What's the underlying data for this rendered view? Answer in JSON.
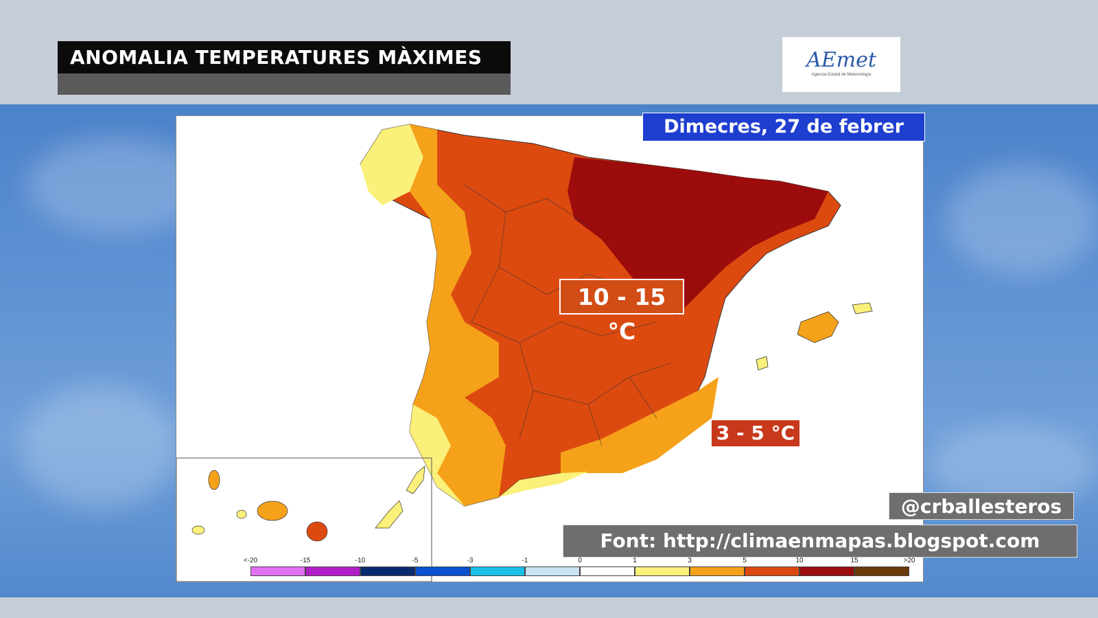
{
  "header": {
    "title": "ANOMALIA TEMPERATURES MÀXIMES",
    "logo_text": "AEmet",
    "logo_subtext": "Agencia Estatal de Meteorología"
  },
  "map": {
    "date_label": "Dimecres, 27 de febrer",
    "anomaly_label_center": "10 - 15 °C",
    "anomaly_label_coast": "3 - 5 °C",
    "colors": {
      "lt_minus15": "#e070f0",
      "minus15_minus10": "#b21ec8",
      "minus10_minus5": "#0a2a6e",
      "minus5_minus3": "#0a50d0",
      "minus3_minus1": "#18c0e8",
      "minus1_0": "#c8e4f4",
      "zero_1": "#ffffff",
      "one_3": "#fbf07a",
      "three_5": "#f5a21a",
      "five_10": "#dd4a10",
      "ten_15": "#9c0c0c",
      "gt15": "#6a3a0a"
    }
  },
  "legend": {
    "ticks": [
      "<-20",
      "-15",
      "-10",
      "-5",
      "-3",
      "-1",
      "0",
      "1",
      "3",
      "5",
      "10",
      "15",
      ">20"
    ],
    "colors": [
      "#e070f0",
      "#b21ec8",
      "#0a2a6e",
      "#0a50d0",
      "#18c0e8",
      "#c8e4f4",
      "#ffffff",
      "#fbf07a",
      "#f5a21a",
      "#dd4a10",
      "#9c0c0c",
      "#6a3a0a"
    ]
  },
  "footer": {
    "handle": "@crballesteros",
    "source": "Font: http://climaenmapas.blogspot.com"
  }
}
